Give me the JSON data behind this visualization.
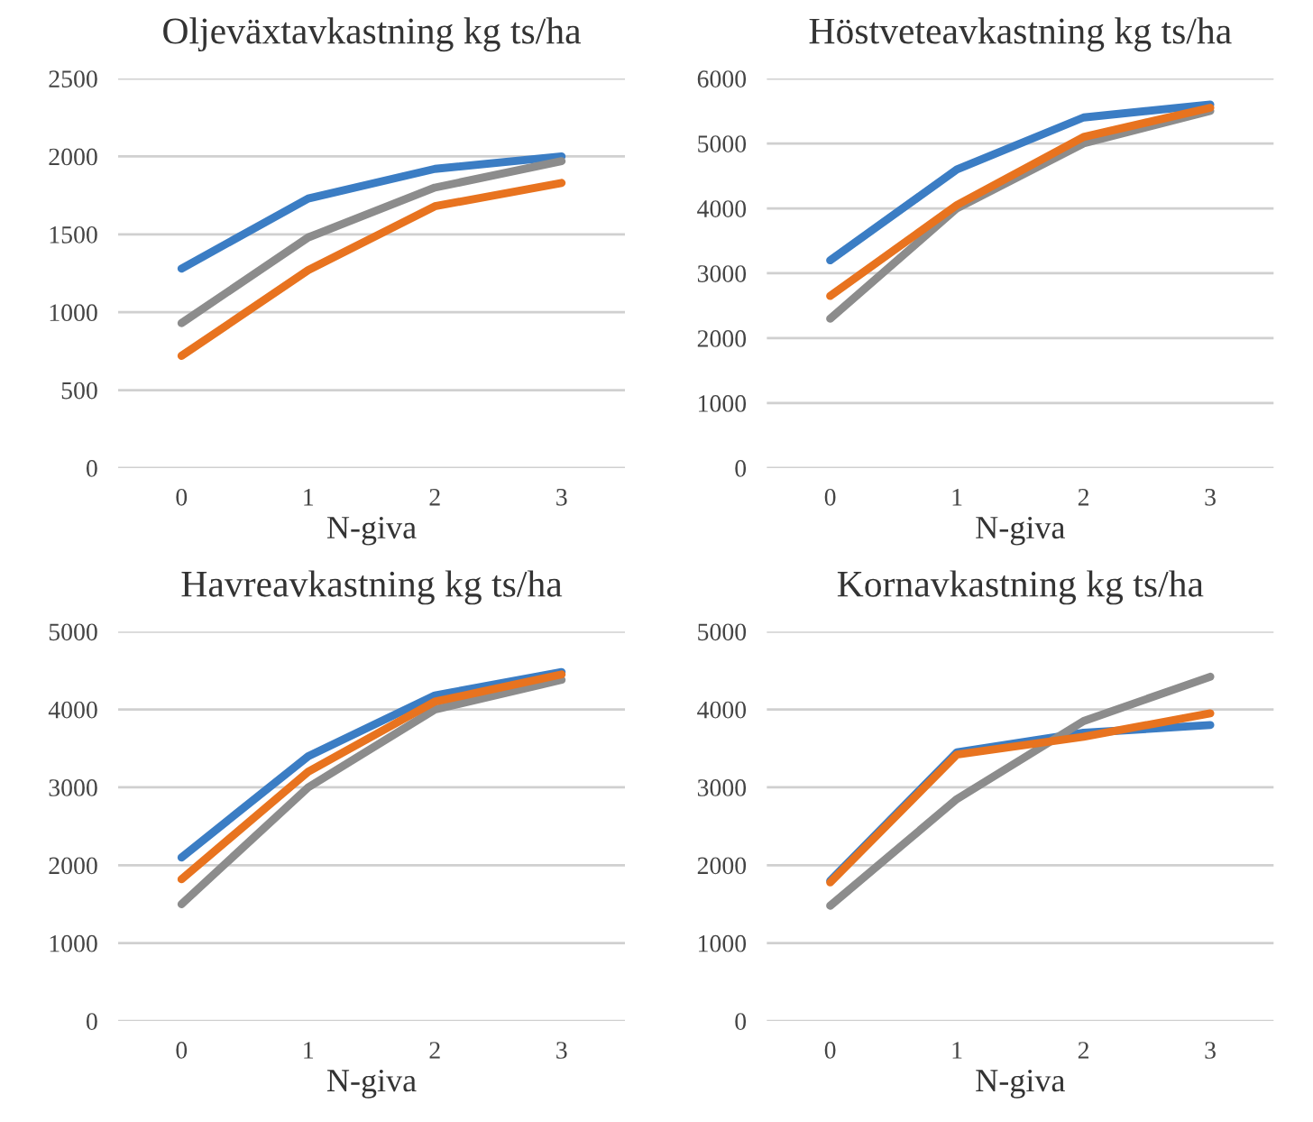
{
  "chart_data": [
    {
      "type": "line",
      "title": "Oljeväxtavkastning kg ts/ha",
      "xlabel": "N-giva",
      "categories": [
        "0",
        "1",
        "2",
        "3"
      ],
      "ylim": [
        0,
        2500
      ],
      "yticks": [
        0,
        500,
        1000,
        1500,
        2000,
        2500
      ],
      "grid": "y",
      "line_style": "solid",
      "marker": "none",
      "series": [
        {
          "color": "#3b7dc4",
          "values": [
            1280,
            1730,
            1920,
            2000
          ]
        },
        {
          "color": "#8c8c8c",
          "values": [
            930,
            1480,
            1800,
            1970
          ]
        },
        {
          "color": "#e8731f",
          "values": [
            720,
            1270,
            1680,
            1830
          ]
        }
      ]
    },
    {
      "type": "line",
      "title": "Höstveteavkastning kg ts/ha",
      "xlabel": "N-giva",
      "categories": [
        "0",
        "1",
        "2",
        "3"
      ],
      "ylim": [
        0,
        6000
      ],
      "yticks": [
        0,
        1000,
        2000,
        3000,
        4000,
        5000,
        6000
      ],
      "grid": "y",
      "line_style": "solid",
      "marker": "none",
      "series": [
        {
          "color": "#3b7dc4",
          "values": [
            3200,
            4600,
            5400,
            5600
          ]
        },
        {
          "color": "#8c8c8c",
          "values": [
            2300,
            4000,
            5000,
            5500
          ]
        },
        {
          "color": "#e8731f",
          "values": [
            2650,
            4050,
            5100,
            5550
          ]
        }
      ]
    },
    {
      "type": "line",
      "title": "Havreavkastning kg ts/ha",
      "xlabel": "N-giva",
      "categories": [
        "0",
        "1",
        "2",
        "3"
      ],
      "ylim": [
        0,
        5000
      ],
      "yticks": [
        0,
        1000,
        2000,
        3000,
        4000,
        5000
      ],
      "grid": "y",
      "line_style": "solid",
      "marker": "none",
      "series": [
        {
          "color": "#3b7dc4",
          "values": [
            2100,
            3400,
            4180,
            4480
          ]
        },
        {
          "color": "#8c8c8c",
          "values": [
            1500,
            3000,
            4000,
            4380
          ]
        },
        {
          "color": "#e8731f",
          "values": [
            1820,
            3200,
            4100,
            4450
          ]
        }
      ]
    },
    {
      "type": "line",
      "title": "Kornavkastning kg ts/ha",
      "xlabel": "N-giva",
      "categories": [
        "0",
        "1",
        "2",
        "3"
      ],
      "ylim": [
        0,
        5000
      ],
      "yticks": [
        0,
        1000,
        2000,
        3000,
        4000,
        5000
      ],
      "grid": "y",
      "line_style": "solid",
      "marker": "none",
      "series": [
        {
          "color": "#3b7dc4",
          "values": [
            1800,
            3450,
            3700,
            3800
          ]
        },
        {
          "color": "#8c8c8c",
          "values": [
            1480,
            2850,
            3850,
            4420
          ]
        },
        {
          "color": "#e8731f",
          "values": [
            1780,
            3420,
            3650,
            3950
          ]
        }
      ]
    }
  ]
}
